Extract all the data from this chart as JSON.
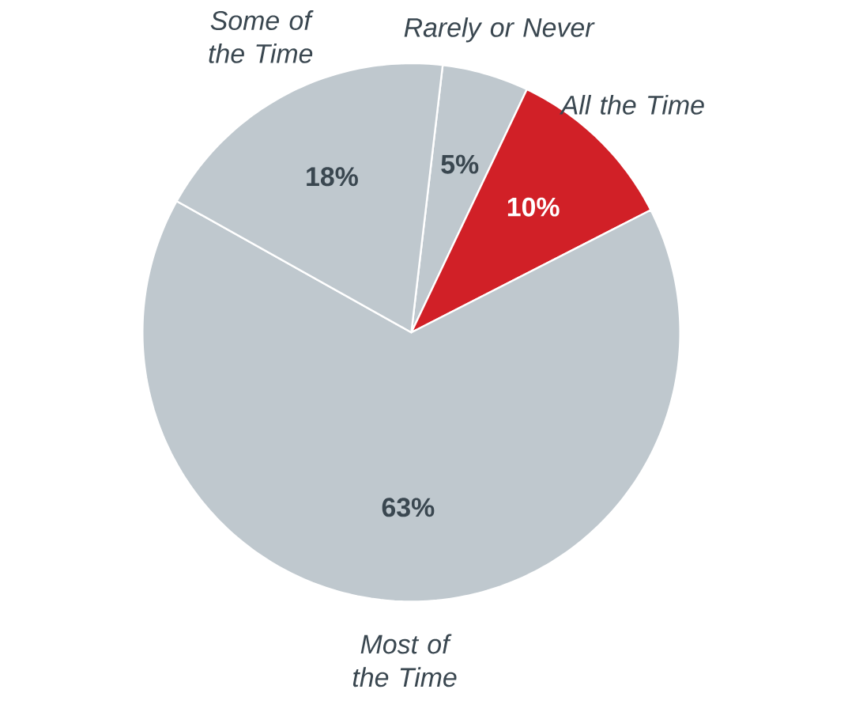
{
  "chart_data": {
    "type": "pie",
    "categories": [
      "Rarely or Never",
      "All the Time",
      "Most of the Time",
      "Some of the Time"
    ],
    "values": [
      5,
      10,
      63,
      18
    ],
    "colors": [
      "#bfc8ce",
      "#d12027",
      "#bfc8ce",
      "#bfc8ce"
    ],
    "value_labels": [
      "5%",
      "10%",
      "63%",
      "18%"
    ]
  }
}
